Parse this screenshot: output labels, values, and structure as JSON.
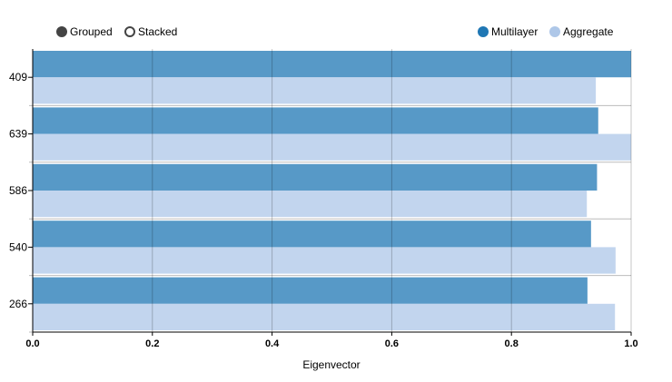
{
  "controls": {
    "mode_options": [
      {
        "label": "Grouped",
        "selected": true
      },
      {
        "label": "Stacked",
        "selected": false
      }
    ]
  },
  "legend": [
    {
      "label": "Multilayer",
      "color": "#1f77b4"
    },
    {
      "label": "Aggregate",
      "color": "#aec7e8"
    }
  ],
  "chart_data": {
    "type": "bar",
    "orientation": "horizontal",
    "categories": [
      "409",
      "639",
      "586",
      "540",
      "266"
    ],
    "series": [
      {
        "name": "Multilayer",
        "color": "#1f77b4",
        "values": [
          1.0,
          0.945,
          0.943,
          0.933,
          0.927
        ]
      },
      {
        "name": "Aggregate",
        "color": "#aec7e8",
        "values": [
          0.941,
          1.0,
          0.926,
          0.974,
          0.973
        ]
      }
    ],
    "xlabel": "Eigenvector",
    "ylabel": "",
    "xlim": [
      0,
      1
    ],
    "x_ticks": [
      "0.0",
      "0.2",
      "0.4",
      "0.6",
      "0.8",
      "1.0"
    ],
    "grid": true,
    "legend_position": "top-right"
  }
}
